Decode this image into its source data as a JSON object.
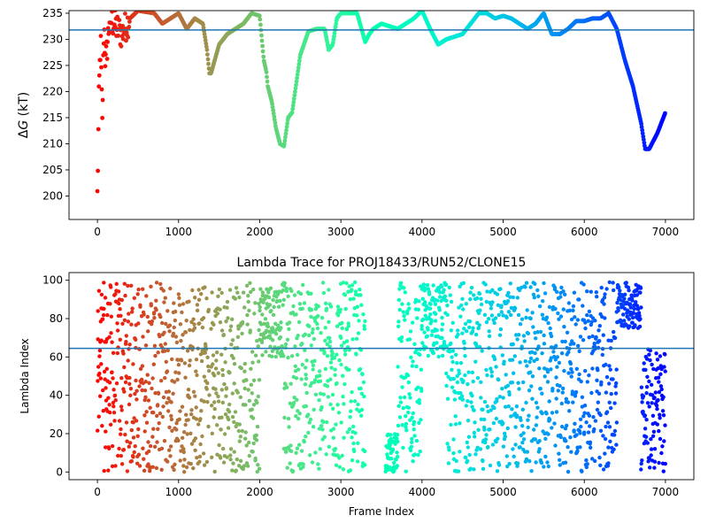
{
  "chart_data": [
    {
      "type": "scatter",
      "title": "",
      "xlabel": "",
      "ylabel": "ΔG (kT)",
      "ylabel_parts": {
        "delta": "Δ",
        "var": "G",
        "unit": " (kT)"
      },
      "xlim": [
        -350,
        7350
      ],
      "ylim": [
        195.5,
        235.5
      ],
      "xticks": [
        0,
        1000,
        2000,
        3000,
        4000,
        5000,
        6000,
        7000
      ],
      "yticks": [
        200,
        205,
        210,
        215,
        220,
        225,
        230,
        235
      ],
      "hline": {
        "y": 231.8,
        "color": "#1f77b4"
      },
      "colormap": "rainbow (reversed: red at frame 0, violet at frame 7000)",
      "series": [
        {
          "x": [
            0,
            20,
            40,
            60,
            80,
            100,
            150,
            200,
            300,
            400,
            500,
            700,
            800,
            1000,
            1100,
            1200,
            1300,
            1350,
            1380,
            1400,
            1500,
            1600,
            1700,
            1800,
            1900,
            2000,
            2050,
            2080,
            2100,
            2150,
            2200,
            2250,
            2300,
            2350,
            2400,
            2500,
            2600,
            2700,
            2800,
            2850,
            2900,
            2950,
            3000,
            3100,
            3200,
            3300,
            3350,
            3400,
            3500,
            3600,
            3700,
            3800,
            3900,
            4000,
            4100,
            4200,
            4300,
            4400,
            4500,
            4600,
            4700,
            4800,
            4900,
            5000,
            5100,
            5200,
            5300,
            5400,
            5500,
            5600,
            5700,
            5800,
            5900,
            6000,
            6100,
            6200,
            6300,
            6400,
            6500,
            6600,
            6700,
            6750,
            6800,
            6900,
            7000
          ],
          "y": [
            200,
            220,
            230,
            213.5,
            233,
            225,
            234,
            233,
            231,
            234,
            235.5,
            235,
            233,
            235,
            232,
            234,
            233,
            228,
            223.5,
            223.5,
            229,
            231,
            232,
            233,
            235,
            234.5,
            226,
            224,
            221,
            218,
            213,
            210,
            209.5,
            215,
            216,
            227,
            231.5,
            232,
            232,
            228,
            229,
            234,
            235,
            235,
            235,
            229.5,
            231,
            232,
            233,
            232.5,
            232,
            233,
            234,
            235.5,
            232,
            229,
            230,
            230.5,
            231,
            233,
            235,
            235,
            234,
            234.5,
            234,
            233,
            232,
            233,
            235,
            231,
            231,
            232,
            233.5,
            233.5,
            234,
            234,
            235,
            232,
            226,
            221,
            214,
            209,
            209,
            212,
            216
          ]
        }
      ]
    },
    {
      "type": "scatter",
      "title": "Lambda Trace for PROJ18433/RUN52/CLONE15",
      "xlabel": "Frame Index",
      "ylabel": "Lambda Index",
      "xlim": [
        -350,
        7350
      ],
      "ylim": [
        -4,
        104
      ],
      "xticks": [
        0,
        1000,
        2000,
        3000,
        4000,
        5000,
        6000,
        7000
      ],
      "yticks": [
        0,
        20,
        40,
        60,
        80,
        100
      ],
      "hline": {
        "y": 64.5,
        "color": "#1f77b4"
      },
      "colormap": "rainbow (reversed: red at frame 0, violet at frame 7000)",
      "series": [
        {
          "sampling": "approximately one sampled frame every 10 frames from 0 to 7000; lambda index spans 0–99 in dense vertical bands",
          "bands": [
            {
              "x_range": [
                0,
                100
              ],
              "lambda_range": [
                0,
                99
              ]
            },
            {
              "x_range": [
                100,
                1380
              ],
              "lambda_range": [
                0,
                99
              ]
            },
            {
              "x_range": [
                1400,
                2000
              ],
              "lambda_range": [
                0,
                99
              ]
            },
            {
              "x_range": [
                2000,
                2300
              ],
              "lambda_range": [
                60,
                99
              ]
            },
            {
              "x_range": [
                2300,
                3300
              ],
              "lambda_range": [
                0,
                99
              ]
            },
            {
              "x_range": [
                3550,
                3700
              ],
              "lambda_range": [
                0,
                20
              ]
            },
            {
              "x_range": [
                3700,
                4000
              ],
              "lambda_range": [
                0,
                99
              ]
            },
            {
              "x_range": [
                4000,
                4300
              ],
              "lambda_range": [
                60,
                99
              ]
            },
            {
              "x_range": [
                4300,
                6400
              ],
              "lambda_range": [
                0,
                99
              ]
            },
            {
              "x_range": [
                6400,
                6700
              ],
              "lambda_range": [
                75,
                99
              ]
            },
            {
              "x_range": [
                6700,
                7000
              ],
              "lambda_range": [
                0,
                65
              ]
            }
          ]
        }
      ]
    }
  ]
}
